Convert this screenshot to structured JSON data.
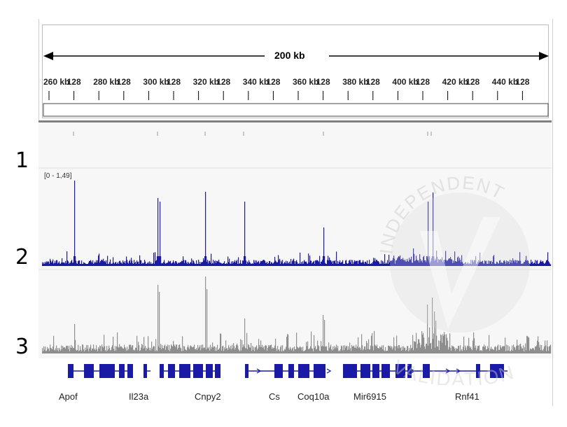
{
  "ruler": {
    "span_label": "200 kb",
    "ticks": [
      "260 kb",
      "128",
      "280 kb",
      "128",
      "300 kb",
      "128",
      "320 kb",
      "128",
      "340 kb",
      "128",
      "360 kb",
      "128",
      "380 kb",
      "128",
      "400 kb",
      "128",
      "420 kb",
      "128",
      "440 kb",
      "128"
    ]
  },
  "tracks": [
    {
      "label": "1"
    },
    {
      "label": "2",
      "range": "[0 - 1,49]",
      "color": "#1a1aa6"
    },
    {
      "label": "3",
      "color": "#7f7f7f"
    }
  ],
  "genes": [
    "Apof",
    "Il23a",
    "Cnpy2",
    "Cs",
    "Coq10a",
    "Mir6915",
    "Rnf41"
  ],
  "gene_color": "#1a1aa6",
  "watermark": {
    "top_text": "INDEPENDENT",
    "bottom_text": "VALIDATION"
  }
}
